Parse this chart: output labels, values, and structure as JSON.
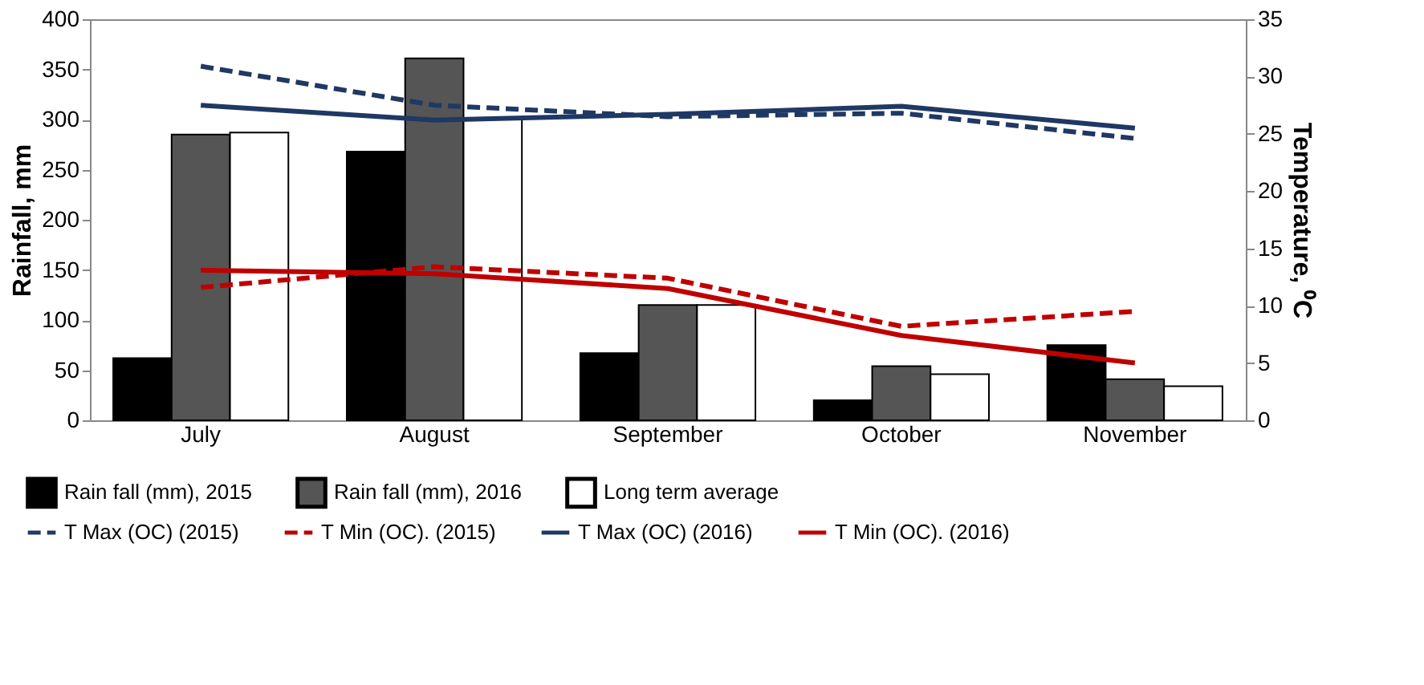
{
  "chart_data": {
    "type": "bar",
    "categories": [
      "July",
      "August",
      "September",
      "October",
      "November"
    ],
    "ylabel": "Rainfall, mm",
    "y2label": "Temperature, ⁰C",
    "ylim": [
      0,
      400
    ],
    "yticks": [
      0,
      50,
      100,
      150,
      200,
      250,
      300,
      350,
      400
    ],
    "y2lim": [
      0,
      35
    ],
    "y2ticks": [
      0,
      5,
      10,
      15,
      20,
      25,
      30,
      35
    ],
    "grid": false,
    "legend": "bottom",
    "series": [
      {
        "name": "Rain fall (mm), 2015",
        "color": "#000000",
        "values": [
          62,
          268,
          67,
          20,
          75
        ]
      },
      {
        "name": "Rain fall (mm), 2016",
        "color": "#555555",
        "values": [
          285,
          361,
          115,
          54,
          41
        ]
      },
      {
        "name": "Long term average",
        "color": "#ffffff",
        "values": [
          287,
          300,
          115,
          46,
          34
        ]
      },
      {
        "name": "T Max (OC) (2015)",
        "type": "line",
        "axis": "y2",
        "line_style": "dashed",
        "color": "#1f3864",
        "values": [
          30.9,
          27.5,
          26.5,
          26.8,
          24.6
        ]
      },
      {
        "name": "T Min (OC). (2015)",
        "type": "line",
        "axis": "y2",
        "line_style": "dashed",
        "color": "#c00000",
        "values": [
          11.6,
          13.4,
          12.4,
          8.2,
          9.5
        ]
      },
      {
        "name": "T Max (OC) (2016)",
        "type": "line",
        "axis": "y2",
        "line_style": "solid",
        "color": "#1f3864",
        "values": [
          27.5,
          26.2,
          26.7,
          27.4,
          25.5
        ]
      },
      {
        "name": "T Min (OC). (2016)",
        "type": "line",
        "axis": "y2",
        "line_style": "solid",
        "color": "#c00000",
        "values": [
          13.1,
          12.8,
          11.5,
          7.4,
          5.0
        ]
      }
    ]
  }
}
